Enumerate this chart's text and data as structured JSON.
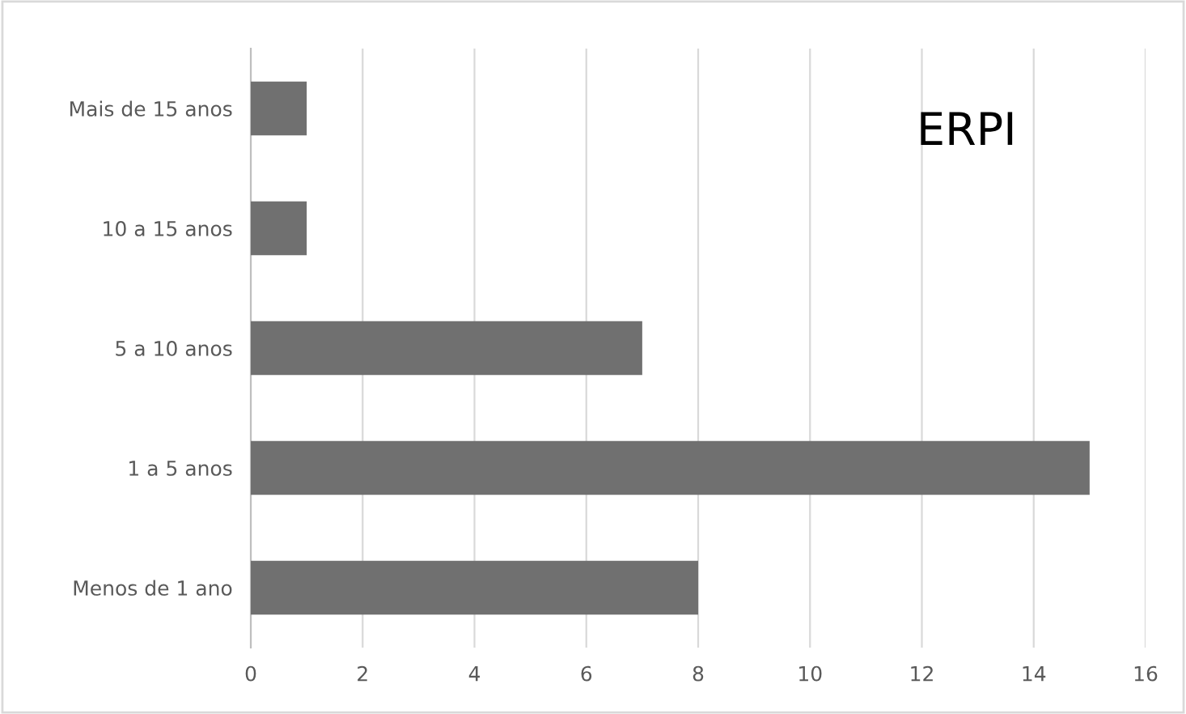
{
  "chart_data": {
    "type": "bar",
    "orientation": "horizontal",
    "title": "ERPI",
    "categories": [
      "Mais de 15 anos",
      "10 a 15 anos",
      "5 a 10 anos",
      "1 a 5 anos",
      "Menos de 1 ano"
    ],
    "values": [
      1,
      1,
      7,
      15,
      8
    ],
    "color": "#707070",
    "xlim": [
      0,
      16
    ],
    "xticks": [
      0,
      2,
      4,
      6,
      8,
      10,
      12,
      14,
      16
    ],
    "grid": "x",
    "legend": false
  }
}
